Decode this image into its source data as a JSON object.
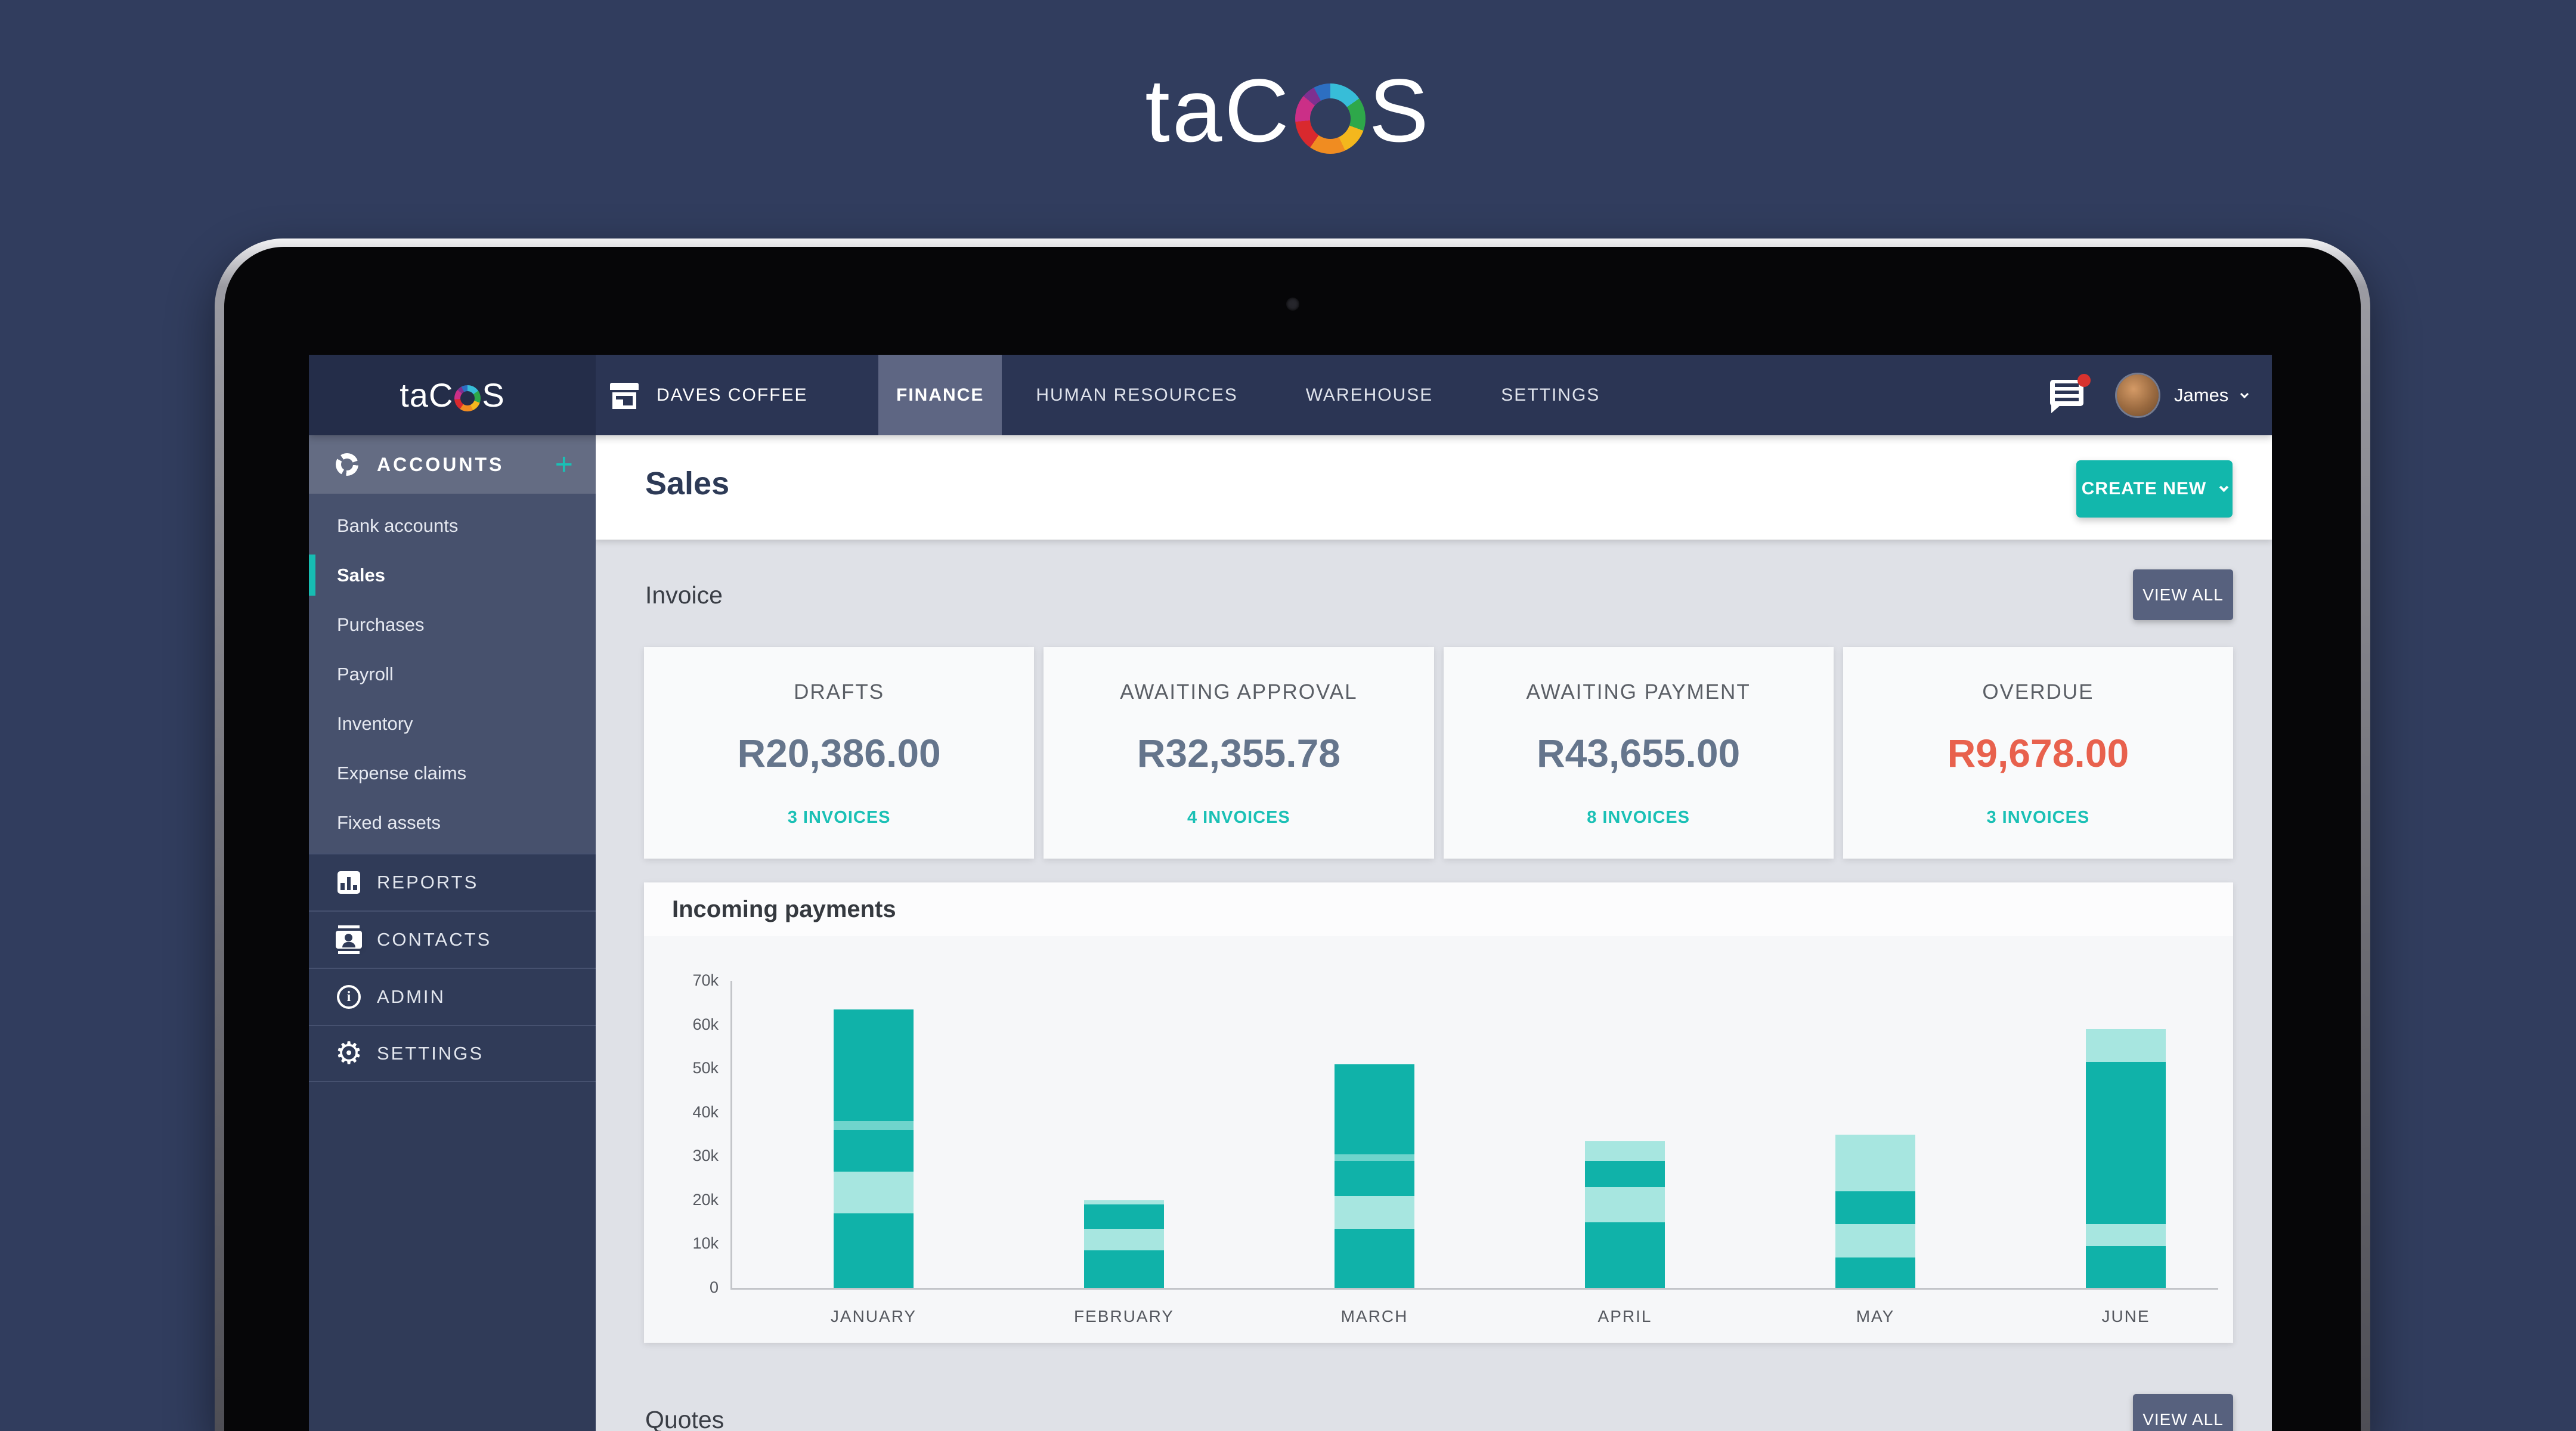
{
  "brand": {
    "prefix": "ta",
    "c": "C",
    "suffix": "S"
  },
  "top_nav": {
    "company": {
      "label": "DAVES COFFEE"
    },
    "tabs": [
      {
        "label": "FINANCE",
        "active": true
      },
      {
        "label": "HUMAN RESOURCES",
        "active": false
      },
      {
        "label": "WAREHOUSE",
        "active": false
      },
      {
        "label": "SETTINGS",
        "active": false
      }
    ],
    "user": {
      "name": "James"
    },
    "messages_unread": true
  },
  "sidebar": {
    "accounts_header": {
      "label": "ACCOUNTS",
      "add_label": "+"
    },
    "items": [
      {
        "label": "Bank accounts",
        "active": false
      },
      {
        "label": "Sales",
        "active": true
      },
      {
        "label": "Purchases",
        "active": false
      },
      {
        "label": "Payroll",
        "active": false
      },
      {
        "label": "Inventory",
        "active": false
      },
      {
        "label": "Expense claims",
        "active": false
      },
      {
        "label": "Fixed assets",
        "active": false
      }
    ],
    "sections": [
      {
        "label": "REPORTS",
        "icon": "bar-chart-icon"
      },
      {
        "label": "CONTACTS",
        "icon": "contacts-icon"
      },
      {
        "label": "ADMIN",
        "icon": "info-icon"
      },
      {
        "label": "SETTINGS",
        "icon": "gear-icon"
      }
    ]
  },
  "page": {
    "title": "Sales",
    "create_button": "CREATE NEW"
  },
  "invoice_section": {
    "title": "Invoice",
    "view_all": "VIEW ALL",
    "cards": [
      {
        "title": "DRAFTS",
        "amount": "R20,386.00",
        "count": "3 INVOICES",
        "accent": "slate"
      },
      {
        "title": "AWAITING APPROVAL",
        "amount": "R32,355.78",
        "count": "4 INVOICES",
        "accent": "slate"
      },
      {
        "title": "AWAITING PAYMENT",
        "amount": "R43,655.00",
        "count": "8 INVOICES",
        "accent": "slate"
      },
      {
        "title": "OVERDUE",
        "amount": "R9,678.00",
        "count": "3 INVOICES",
        "accent": "coral"
      }
    ]
  },
  "chart_data": {
    "type": "bar",
    "stacked": true,
    "title": "Incoming payments",
    "categories": [
      "JANUARY",
      "FEBRUARY",
      "MARCH",
      "APRIL",
      "MAY",
      "JUNE"
    ],
    "segments": [
      [
        {
          "value": 17000,
          "shade": "dark"
        },
        {
          "value": 9500,
          "shade": "light"
        },
        {
          "value": 9500,
          "shade": "dark"
        },
        {
          "value": 2000,
          "shade": "mid"
        },
        {
          "value": 25500,
          "shade": "dark"
        }
      ],
      [
        {
          "value": 8500,
          "shade": "dark"
        },
        {
          "value": 5000,
          "shade": "light"
        },
        {
          "value": 5500,
          "shade": "dark"
        },
        {
          "value": 1000,
          "shade": "light"
        }
      ],
      [
        {
          "value": 13500,
          "shade": "dark"
        },
        {
          "value": 7500,
          "shade": "light"
        },
        {
          "value": 8000,
          "shade": "dark"
        },
        {
          "value": 1500,
          "shade": "mid"
        },
        {
          "value": 20500,
          "shade": "dark"
        }
      ],
      [
        {
          "value": 15000,
          "shade": "dark"
        },
        {
          "value": 8000,
          "shade": "light"
        },
        {
          "value": 6000,
          "shade": "dark"
        },
        {
          "value": 4500,
          "shade": "light"
        }
      ],
      [
        {
          "value": 7000,
          "shade": "dark"
        },
        {
          "value": 7500,
          "shade": "light"
        },
        {
          "value": 7500,
          "shade": "dark"
        },
        {
          "value": 13000,
          "shade": "light"
        }
      ],
      [
        {
          "value": 9500,
          "shade": "dark"
        },
        {
          "value": 5000,
          "shade": "light"
        },
        {
          "value": 37000,
          "shade": "dark"
        },
        {
          "value": 7500,
          "shade": "light"
        }
      ]
    ],
    "totals": [
      63500,
      20000,
      51000,
      33500,
      35000,
      59000
    ],
    "y_ticks": [
      "0",
      "10k",
      "20k",
      "30k",
      "40k",
      "50k",
      "60k",
      "70k"
    ],
    "ylim": [
      0,
      70000
    ],
    "grid": false,
    "legend": null,
    "colors": {
      "dark": "#10b2a9",
      "light": "#a7e6e0",
      "mid": "#6fd4cc"
    }
  },
  "quotes_section": {
    "title": "Quotes",
    "view_all": "VIEW ALL"
  },
  "colors": {
    "accent_teal": "#12b7ac",
    "overdue_coral": "#e8614d",
    "button_slate": "#57617e",
    "nav_bg": "#2b3554",
    "nav_active": "#5e6683",
    "sidebar_bg": "#303b58",
    "page_bg": "#313d5e"
  }
}
